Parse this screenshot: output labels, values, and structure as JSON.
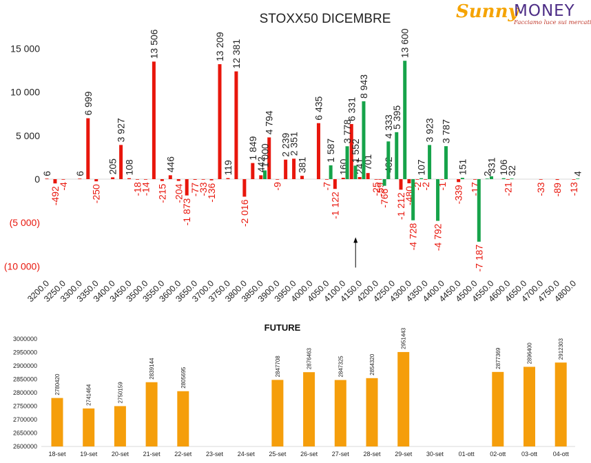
{
  "logo": {
    "word1": "Sunny",
    "word2": "MONEY",
    "tagline": "Facciamo luce sui mercati",
    "colors": {
      "sunny": "#f5a300",
      "money": "#4d2d86",
      "tagline": "#c0392b"
    }
  },
  "chart_data": [
    {
      "type": "bar",
      "title": "STOXX50 DICEMBRE",
      "xlabel": "",
      "ylabel": "",
      "ylim": [
        -10000,
        15000
      ],
      "yticks": [
        15000,
        10000,
        5000,
        0,
        -5000,
        -10000
      ],
      "ytick_labels": [
        "15 000",
        "10 000",
        "5 000",
        "0",
        "(5 000)",
        "(10 000)"
      ],
      "categories": [
        "3200.0",
        "3250.0",
        "3300.0",
        "3350.0",
        "3400.0",
        "3450.0",
        "3500.0",
        "3550.0",
        "3600.0",
        "3650.0",
        "3700.0",
        "3750.0",
        "3800.0",
        "3850.0",
        "3900.0",
        "3950.0",
        "4000.0",
        "4050.0",
        "4100.0",
        "4150.0",
        "4200.0",
        "4250.0",
        "4300.0",
        "4350.0",
        "4400.0",
        "4450.0",
        "4500.0",
        "4550.0",
        "4600.0",
        "4650.0",
        "4700.0",
        "4750.0",
        "4800.0"
      ],
      "series": [
        {
          "color": "#e8160c",
          "points": [
            {
              "x": 3200,
              "y": 6,
              "label": "6"
            },
            {
              "x": 3225,
              "y": -492,
              "label": "-492"
            },
            {
              "x": 3250,
              "y": -4,
              "label": "-4"
            },
            {
              "x": 3300,
              "y": 6,
              "label": "6"
            },
            {
              "x": 3325,
              "y": 6999,
              "label": "6 999"
            },
            {
              "x": 3350,
              "y": -250,
              "label": "-250"
            },
            {
              "x": 3400,
              "y": 205,
              "label": "205"
            },
            {
              "x": 3425,
              "y": 3927,
              "label": "3 927"
            },
            {
              "x": 3450,
              "y": 108,
              "label": "108"
            },
            {
              "x": 3475,
              "y": -18,
              "label": "-18"
            },
            {
              "x": 3500,
              "y": -14,
              "label": "-14"
            },
            {
              "x": 3525,
              "y": 13506,
              "label": "13 506"
            },
            {
              "x": 3550,
              "y": -215,
              "label": "-215"
            },
            {
              "x": 3575,
              "y": 446,
              "label": "446"
            },
            {
              "x": 3600,
              "y": -204,
              "label": "-204"
            },
            {
              "x": 3625,
              "y": -1873,
              "label": "-1 873"
            },
            {
              "x": 3650,
              "y": -77,
              "label": "-77"
            },
            {
              "x": 3675,
              "y": -33,
              "label": "-33"
            },
            {
              "x": 3700,
              "y": -136,
              "label": "-136"
            },
            {
              "x": 3725,
              "y": 13209,
              "label": "13 209"
            },
            {
              "x": 3750,
              "y": 119,
              "label": "119"
            },
            {
              "x": 3775,
              "y": 12381,
              "label": "12 381"
            },
            {
              "x": 3800,
              "y": -2016,
              "label": "-2 016"
            },
            {
              "x": 3825,
              "y": 1849,
              "label": "1 849"
            },
            {
              "x": 3850,
              "y": 442,
              "label": "442"
            },
            {
              "x": 3875,
              "y": 4794,
              "label": "4 794"
            },
            {
              "x": 3900,
              "y": -9,
              "label": "-9"
            },
            {
              "x": 3925,
              "y": 2239,
              "label": "2 239"
            },
            {
              "x": 3950,
              "y": 2351,
              "label": "2 351"
            },
            {
              "x": 3975,
              "y": 381,
              "label": "381"
            },
            {
              "x": 4025,
              "y": 6435,
              "label": "6 435"
            },
            {
              "x": 4050,
              "y": -7,
              "label": "-7"
            },
            {
              "x": 4075,
              "y": -1122,
              "label": "-1 122"
            },
            {
              "x": 4100,
              "y": 160,
              "label": "160"
            },
            {
              "x": 4125,
              "y": 6331,
              "label": "6 331"
            },
            {
              "x": 4150,
              "y": 241,
              "label": "241"
            },
            {
              "x": 4175,
              "y": 701,
              "label": "701"
            },
            {
              "x": 4200,
              "y": -25,
              "label": "-25"
            },
            {
              "x": 4212,
              "y": -59,
              "label": "-59"
            },
            {
              "x": 4237,
              "y": 402,
              "label": "402"
            },
            {
              "x": 4275,
              "y": -1212,
              "label": "-1 212"
            },
            {
              "x": 4300,
              "y": -480,
              "label": "-480"
            },
            {
              "x": 4325,
              "y": -2,
              "label": "-2"
            },
            {
              "x": 4350,
              "y": -2,
              "label": "-2"
            },
            {
              "x": 4400,
              "y": -1,
              "label": "-1"
            },
            {
              "x": 4450,
              "y": -339,
              "label": "-339"
            },
            {
              "x": 4500,
              "y": -17,
              "label": "-17"
            },
            {
              "x": 4600,
              "y": -21,
              "label": "-21"
            },
            {
              "x": 4700,
              "y": -33,
              "label": "-33"
            },
            {
              "x": 4750,
              "y": -89,
              "label": "-89"
            },
            {
              "x": 4800,
              "y": -13,
              "label": "-13"
            }
          ]
        },
        {
          "color": "#16a34a",
          "points": [
            {
              "x": 3862,
              "y": 1000,
              "label": "1 000"
            },
            {
              "x": 4062,
              "y": 1587,
              "label": "1 587"
            },
            {
              "x": 4112,
              "y": 3778,
              "label": "3 778"
            },
            {
              "x": 4137,
              "y": 1552,
              "label": "1 552"
            },
            {
              "x": 4162,
              "y": 8943,
              "label": "8 943"
            },
            {
              "x": 4225,
              "y": -766,
              "label": "-766"
            },
            {
              "x": 4237,
              "y": 4333,
              "label": "4 333"
            },
            {
              "x": 4262,
              "y": 5395,
              "label": "5 395"
            },
            {
              "x": 4287,
              "y": 13600,
              "label": "13 600"
            },
            {
              "x": 4312,
              "y": -4728,
              "label": "-4 728"
            },
            {
              "x": 4337,
              "y": 107,
              "label": "107"
            },
            {
              "x": 4362,
              "y": 3923,
              "label": "3 923"
            },
            {
              "x": 4387,
              "y": -4792,
              "label": "-4 792"
            },
            {
              "x": 4412,
              "y": 3787,
              "label": "3 787"
            },
            {
              "x": 4462,
              "y": 151,
              "label": "151"
            },
            {
              "x": 4512,
              "y": -7187,
              "label": "-7 187"
            },
            {
              "x": 4537,
              "y": 2,
              "label": "2"
            },
            {
              "x": 4550,
              "y": 331,
              "label": "331"
            },
            {
              "x": 4587,
              "y": 106,
              "label": "106"
            },
            {
              "x": 4612,
              "y": 32,
              "label": "32"
            },
            {
              "x": 4812,
              "y": 4,
              "label": "4"
            }
          ]
        }
      ],
      "annotation": {
        "type": "arrow",
        "x": 4150,
        "from_y": -10000,
        "to_y": -6600
      }
    },
    {
      "type": "bar",
      "title": "FUTURE",
      "xlabel": "",
      "ylabel": "",
      "ylim": [
        2600000,
        3000000
      ],
      "yticks": [
        3000000,
        2950000,
        2900000,
        2850000,
        2800000,
        2750000,
        2700000,
        2650000,
        2600000
      ],
      "ytick_labels": [
        "3000000",
        "2950000",
        "2900000",
        "2850000",
        "2800000",
        "2750000",
        "2700000",
        "2650000",
        "2600000"
      ],
      "categories": [
        "18-set",
        "19-set",
        "20-set",
        "21-set",
        "22-set",
        "23-set",
        "24-set",
        "25-set",
        "26-set",
        "27-set",
        "28-set",
        "29-set",
        "30-set",
        "01-ott",
        "02-ott",
        "03-ott",
        "04-ott"
      ],
      "values": [
        2780420,
        2741464,
        2750159,
        2839144,
        2805695,
        null,
        null,
        2847708,
        2876463,
        2847325,
        2854320,
        2951443,
        null,
        null,
        2877369,
        2896400,
        2912303
      ],
      "value_labels": [
        "2780420",
        "2741464",
        "2750159",
        "2839144",
        "2805695",
        "",
        "",
        "2847708",
        "2876463",
        "2847325",
        "2854320",
        "2951443",
        "",
        "",
        "2877369",
        "2896400",
        "2912303"
      ],
      "color": "#f59e0b"
    }
  ]
}
